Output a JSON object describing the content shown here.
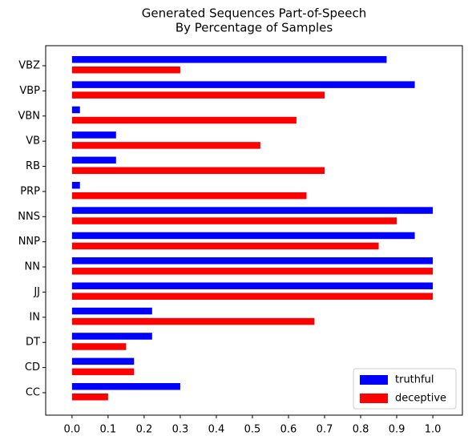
{
  "chart_data": {
    "type": "barh",
    "title": [
      "Generated Sequences Part-of-Speech",
      "By Percentage of Samples"
    ],
    "categories": [
      "CC",
      "CD",
      "DT",
      "IN",
      "JJ",
      "NN",
      "NNP",
      "NNS",
      "PRP",
      "RB",
      "VB",
      "VBN",
      "VBP",
      "VBZ"
    ],
    "series": [
      {
        "name": "truthful",
        "color": "#0000ff",
        "values": [
          0.3,
          0.172,
          0.222,
          0.222,
          1.0,
          1.0,
          0.95,
          1.0,
          0.022,
          0.122,
          0.122,
          0.022,
          0.95,
          0.872
        ]
      },
      {
        "name": "deceptive",
        "color": "#ff0000",
        "values": [
          0.1,
          0.172,
          0.15,
          0.672,
          1.0,
          1.0,
          0.85,
          0.9,
          0.65,
          0.7,
          0.522,
          0.622,
          0.7,
          0.3
        ]
      }
    ],
    "xlim": [
      -0.073,
      1.082
    ],
    "xticks": [
      {
        "value": 0,
        "label": "0.0"
      },
      {
        "value": 0.1,
        "label": "0.1"
      },
      {
        "value": 0.2,
        "label": "0.2"
      },
      {
        "value": 0.3,
        "label": "0.3"
      },
      {
        "value": 0.4,
        "label": "0.4"
      },
      {
        "value": 0.5,
        "label": "0.5"
      },
      {
        "value": 0.6,
        "label": "0.6"
      },
      {
        "value": 0.7,
        "label": "0.7"
      },
      {
        "value": 0.8,
        "label": "0.8"
      },
      {
        "value": 0.9,
        "label": "0.9"
      },
      {
        "value": 1.0,
        "label": "1.0"
      }
    ],
    "legend": "lower right"
  }
}
